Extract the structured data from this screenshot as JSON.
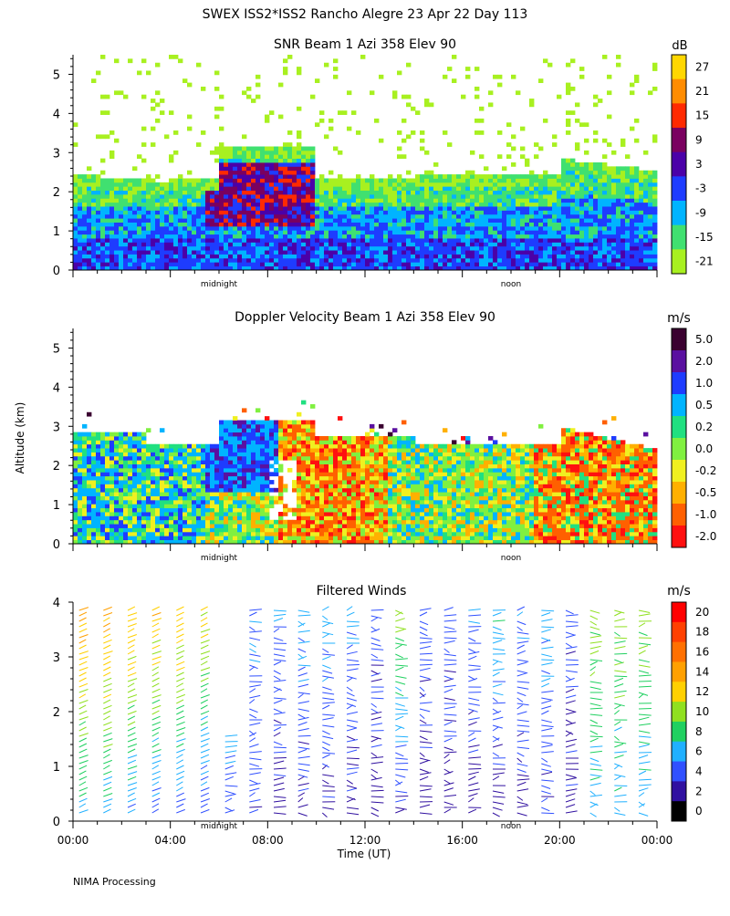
{
  "page": {
    "title": "SWEX ISS2*ISS2 Rancho Alegre  23 Apr 22 Day 113",
    "footer": "NIMA Processing",
    "y_axis_label": "Altitude (km)",
    "x_axis_label": "Time (UT)",
    "midnight_label": "midnight",
    "noon_label": "noon"
  },
  "chart_data": [
    {
      "type": "heatmap",
      "title": "SNR Beam 1 Azi 358 Elev 90",
      "units": "dB",
      "ylim": [
        0,
        5.5
      ],
      "yticks": [
        "0",
        "1",
        "2",
        "3",
        "4",
        "5"
      ],
      "xlim_hours": [
        0,
        24
      ],
      "colorbar": {
        "labels": [
          "27",
          "21",
          "15",
          "9",
          "3",
          "-3",
          "-9",
          "-15",
          "-21"
        ],
        "colors": [
          "#ffd700",
          "#ff8c00",
          "#ff2a00",
          "#7a0060",
          "#4b00a8",
          "#1e3cff",
          "#00b4ff",
          "#40e070",
          "#a8f020"
        ]
      }
    },
    {
      "type": "heatmap",
      "title": "Doppler Velocity Beam 1 Azi 358 Elev 90",
      "units": "m/s",
      "ylim": [
        0,
        5.5
      ],
      "yticks": [
        "0",
        "1",
        "2",
        "3",
        "4",
        "5"
      ],
      "xlim_hours": [
        0,
        24
      ],
      "colorbar": {
        "labels": [
          "5.0",
          "2.0",
          "1.0",
          "0.5",
          "0.2",
          "0.0",
          "-0.2",
          "-0.5",
          "-1.0",
          "-2.0"
        ],
        "colors": [
          "#3a0030",
          "#5a10a0",
          "#1e3cff",
          "#00b4ff",
          "#20e080",
          "#80f040",
          "#f0f020",
          "#ffb000",
          "#ff6000",
          "#ff1010"
        ]
      }
    },
    {
      "type": "scatter",
      "title": "Filtered Winds",
      "units": "m/s",
      "ylim": [
        0,
        4
      ],
      "yticks": [
        "0",
        "1",
        "2",
        "3",
        "4"
      ],
      "xlim_hours": [
        0,
        24
      ],
      "xticks": [
        "00:00",
        "04:00",
        "08:00",
        "12:00",
        "16:00",
        "20:00",
        "00:00"
      ],
      "colorbar": {
        "labels": [
          "20",
          "18",
          "16",
          "14",
          "12",
          "10",
          "8",
          "6",
          "4",
          "2",
          "0"
        ],
        "colors": [
          "#ff0000",
          "#ff4000",
          "#ff7000",
          "#ffa000",
          "#ffd000",
          "#90e020",
          "#20d060",
          "#20b0ff",
          "#3050ff",
          "#3010a0",
          "#000000"
        ]
      },
      "wind_speed_by_hour": [
        {
          "hour": 0.5,
          "low": 6,
          "high": 14
        },
        {
          "hour": 1.5,
          "low": 6,
          "high": 14
        },
        {
          "hour": 2.5,
          "low": 5,
          "high": 13
        },
        {
          "hour": 3.5,
          "low": 4,
          "high": 13
        },
        {
          "hour": 4.5,
          "low": 4,
          "high": 13
        },
        {
          "hour": 5.5,
          "low": 3,
          "high": 12
        },
        {
          "hour": 6.5,
          "low": 3,
          "high": 6
        },
        {
          "hour": 7.5,
          "low": 3,
          "high": 5
        },
        {
          "hour": 8.5,
          "low": 2,
          "high": 5
        },
        {
          "hour": 9.5,
          "low": 2,
          "high": 6
        },
        {
          "hour": 10.5,
          "low": 2,
          "high": 6
        },
        {
          "hour": 11.5,
          "low": 2,
          "high": 6
        },
        {
          "hour": 12.5,
          "low": 2,
          "high": 4
        },
        {
          "hour": 13.5,
          "low": 2,
          "high": 10
        },
        {
          "hour": 14.5,
          "low": 2,
          "high": 4
        },
        {
          "hour": 15.5,
          "low": 2,
          "high": 4
        },
        {
          "hour": 16.5,
          "low": 2,
          "high": 5
        },
        {
          "hour": 17.5,
          "low": 2,
          "high": 7
        },
        {
          "hour": 18.5,
          "low": 2,
          "high": 5
        },
        {
          "hour": 19.5,
          "low": 3,
          "high": 6
        },
        {
          "hour": 20.5,
          "low": 2,
          "high": 4
        },
        {
          "hour": 21.5,
          "low": 6,
          "high": 10
        },
        {
          "hour": 22.5,
          "low": 6,
          "high": 10
        },
        {
          "hour": 23.5,
          "low": 6,
          "high": 10
        }
      ]
    }
  ]
}
